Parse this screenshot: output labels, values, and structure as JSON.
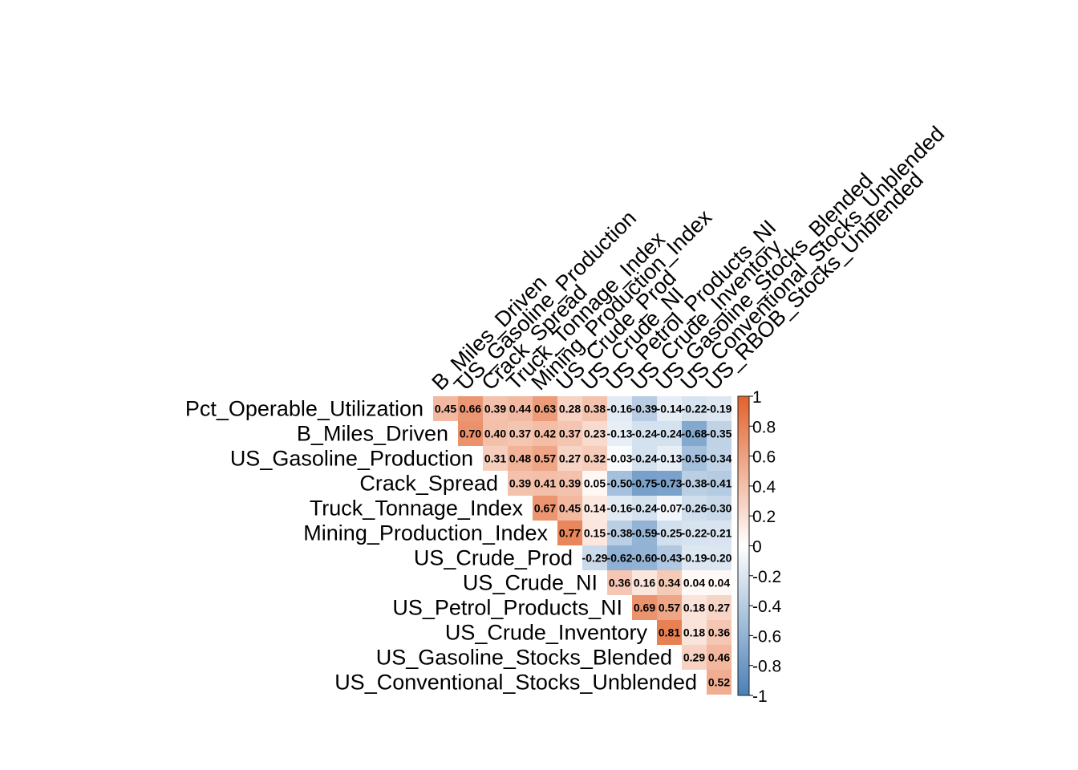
{
  "chart_data": {
    "type": "heatmap",
    "variables_x": [
      "B_Miles_Driven",
      "US_Gasoline_Production",
      "Crack_Spread",
      "Truck_Tonnage_Index",
      "Mining_Production_Index",
      "US_Crude_Prod",
      "US_Crude_NI",
      "US_Petrol_Products_NI",
      "US_Crude_Inventory",
      "US_Gasoline_Stocks_Blended",
      "US_Conventional_Stocks_Unblended",
      "US_RBOB_Stocks_Unblended"
    ],
    "variables_y": [
      "Pct_Operable_Utilization",
      "B_Miles_Driven",
      "US_Gasoline_Production",
      "Crack_Spread",
      "Truck_Tonnage_Index",
      "Mining_Production_Index",
      "US_Crude_Prod",
      "US_Crude_NI",
      "US_Petrol_Products_NI",
      "US_Crude_Inventory",
      "US_Gasoline_Stocks_Blended",
      "US_Conventional_Stocks_Unblended"
    ],
    "matrix": [
      [
        0.45,
        0.66,
        0.39,
        0.44,
        0.63,
        0.28,
        0.38,
        -0.16,
        -0.39,
        -0.14,
        -0.22,
        -0.19
      ],
      [
        null,
        0.7,
        0.4,
        0.37,
        0.42,
        0.37,
        0.23,
        -0.13,
        -0.24,
        -0.24,
        -0.68,
        -0.35
      ],
      [
        null,
        null,
        0.31,
        0.48,
        0.57,
        0.27,
        0.32,
        -0.03,
        -0.24,
        -0.13,
        -0.5,
        -0.34
      ],
      [
        null,
        null,
        null,
        0.39,
        0.41,
        0.39,
        0.05,
        -0.5,
        -0.75,
        -0.73,
        -0.38,
        -0.41
      ],
      [
        null,
        null,
        null,
        null,
        0.67,
        0.45,
        0.14,
        -0.16,
        -0.24,
        -0.07,
        -0.26,
        -0.3
      ],
      [
        null,
        null,
        null,
        null,
        null,
        0.77,
        0.15,
        -0.38,
        -0.59,
        -0.25,
        -0.22,
        -0.21
      ],
      [
        null,
        null,
        null,
        null,
        null,
        null,
        -0.29,
        -0.62,
        -0.6,
        -0.43,
        -0.19,
        -0.2
      ],
      [
        null,
        null,
        null,
        null,
        null,
        null,
        null,
        0.36,
        0.16,
        0.34,
        0.04,
        0.04
      ],
      [
        null,
        null,
        null,
        null,
        null,
        null,
        null,
        null,
        0.69,
        0.57,
        0.18,
        0.27
      ],
      [
        null,
        null,
        null,
        null,
        null,
        null,
        null,
        null,
        null,
        0.81,
        0.18,
        0.36
      ],
      [
        null,
        null,
        null,
        null,
        null,
        null,
        null,
        null,
        null,
        null,
        0.29,
        0.46
      ],
      [
        null,
        null,
        null,
        null,
        null,
        null,
        null,
        null,
        null,
        null,
        null,
        0.52
      ]
    ],
    "matrix_labels": [
      [
        "0.45",
        "0.66",
        "0.39",
        "0.44",
        "0.63",
        "0.28",
        "0.38",
        "-0.16",
        "-0.39",
        "-0.14",
        "-0.22",
        "-0.19"
      ],
      [
        null,
        "0.70",
        "0.40",
        "0.37",
        "0.42",
        "0.37",
        "0.23",
        "-0.13",
        "-0.24",
        "-0.24",
        "-0.68",
        "-0.35"
      ],
      [
        null,
        null,
        "0.31",
        "0.48",
        "0.57",
        "0.27",
        "0.32",
        "-0.03",
        "-0.24",
        "-0.13",
        "-0.50",
        "-0.34"
      ],
      [
        null,
        null,
        null,
        "0.39",
        "0.41",
        "0.39",
        "0.05",
        "-0.50",
        "-0.75",
        "-0.73",
        "-0.38",
        "-0.41"
      ],
      [
        null,
        null,
        null,
        null,
        "0.67",
        "0.45",
        "0.14",
        "-0.16",
        "-0.24",
        "-0.07",
        "-0.26",
        "-0.30"
      ],
      [
        null,
        null,
        null,
        null,
        null,
        "0.77",
        "0.15",
        "-0.38",
        "-0.59",
        "-0.25",
        "-0.22",
        "-0.21"
      ],
      [
        null,
        null,
        null,
        null,
        null,
        null,
        "-0.29",
        "-0.62",
        "-0.60",
        "-0.43",
        "-0.19",
        "-0.20"
      ],
      [
        null,
        null,
        null,
        null,
        null,
        null,
        null,
        "0.36",
        "0.16",
        "0.34",
        "0.04",
        "0.04"
      ],
      [
        null,
        null,
        null,
        null,
        null,
        null,
        null,
        null,
        "0.69",
        "0.57",
        "0.18",
        "0.27"
      ],
      [
        null,
        null,
        null,
        null,
        null,
        null,
        null,
        null,
        null,
        "0.81",
        "0.18",
        "0.36"
      ],
      [
        null,
        null,
        null,
        null,
        null,
        null,
        null,
        null,
        null,
        null,
        "0.29",
        "0.46"
      ],
      [
        null,
        null,
        null,
        null,
        null,
        null,
        null,
        null,
        null,
        null,
        null,
        "0.52"
      ]
    ],
    "color_scale": {
      "min": -1,
      "max": 1,
      "negative_color": "#4a80b8",
      "mid_color": "#ffffff",
      "positive_color": "#e2622b",
      "ticks": [
        "-1",
        "-0.8",
        "-0.6",
        "-0.4",
        "-0.2",
        "0",
        "0.2",
        "0.4",
        "0.6",
        "0.8",
        "1"
      ]
    },
    "legend_position": "right",
    "grid": false
  }
}
